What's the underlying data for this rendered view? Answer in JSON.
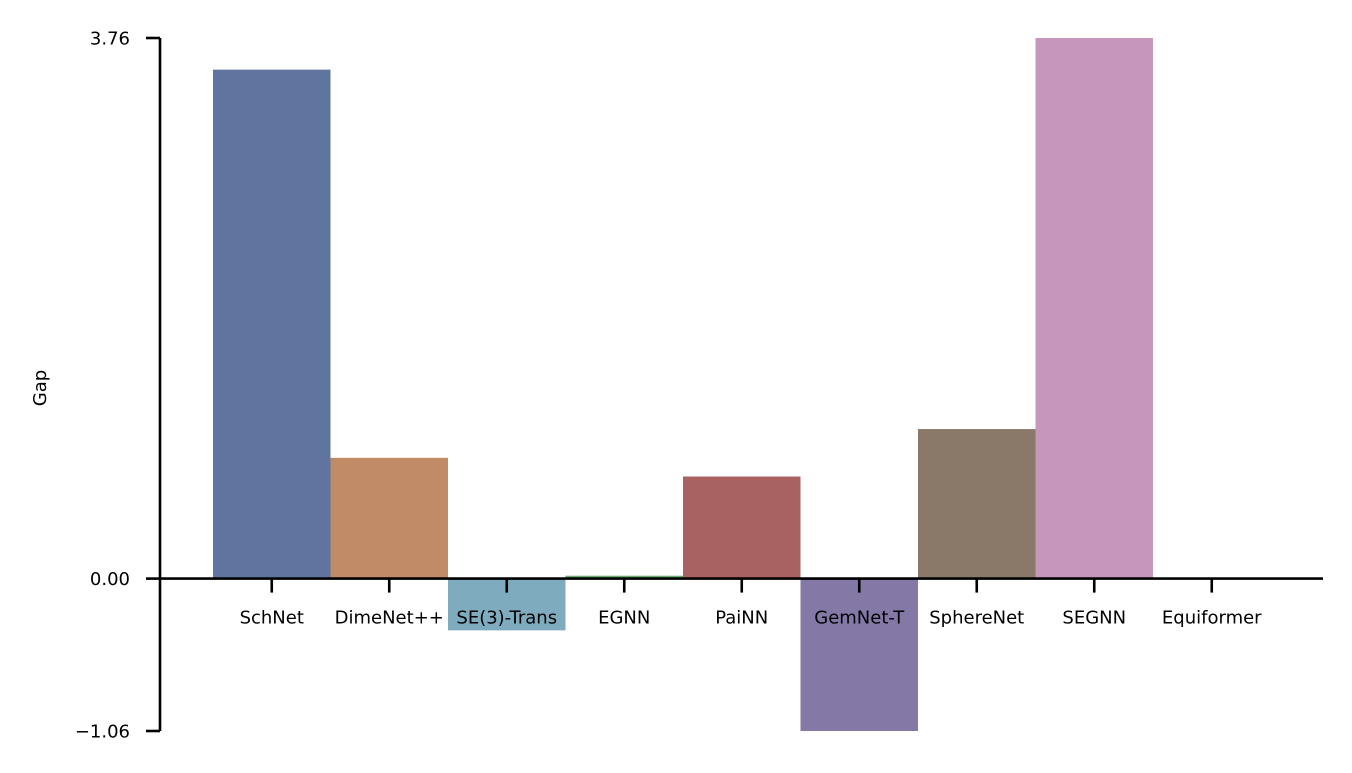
{
  "chart_data": {
    "type": "bar",
    "title": "",
    "xlabel": "",
    "ylabel": "Gap",
    "categories": [
      "SchNet",
      "DimeNet++",
      "SE(3)-Trans",
      "EGNN",
      "PaiNN",
      "GemNet-T",
      "SphereNet",
      "SEGNN",
      "Equiformer"
    ],
    "values": [
      3.54,
      0.84,
      -0.36,
      0.02,
      0.71,
      -1.06,
      1.04,
      3.76,
      0.0
    ],
    "colors": [
      "#6074a0",
      "#c18b67",
      "#7eabbd",
      "#6aaa6e",
      "#a86262",
      "#8479a6",
      "#8a7868",
      "#c796bd",
      "#9e9e9e"
    ],
    "ylim": [
      -1.06,
      3.76
    ],
    "yticks": [
      "3.76",
      "0.00",
      "−1.06"
    ],
    "ytick_values": [
      3.76,
      0.0,
      -1.06
    ],
    "grid": false,
    "legend": "none"
  }
}
